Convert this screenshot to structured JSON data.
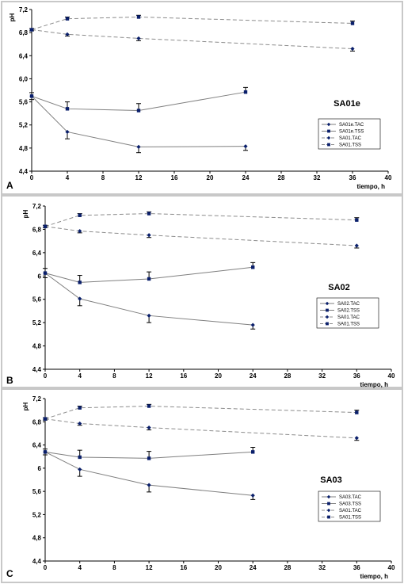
{
  "colors": {
    "solid": "#7f7f7f",
    "dashed": "#8c8c8c",
    "marker": "#0a1f6b",
    "error": "#000000",
    "frame": "#c8c8c8"
  },
  "chart_data": [
    {
      "type": "line",
      "panel_letter": "A",
      "title": "SA01e",
      "xlabel": "tiempo, h",
      "ylabel": "pH",
      "xlim": [
        0,
        40
      ],
      "ylim": [
        4.4,
        7.2
      ],
      "xticks": [
        "0",
        "4",
        "8",
        "12",
        "16",
        "20",
        "24",
        "28",
        "32",
        "36",
        "40"
      ],
      "yticks": [
        "4,4",
        "4,8",
        "5,2",
        "5,6",
        "6,0",
        "6,4",
        "6,8",
        "7,2"
      ],
      "grid": false,
      "legend_position": "right-middle",
      "series": [
        {
          "name": "SA01e.TAC",
          "marker": "diamond",
          "style": "solid",
          "x": [
            0,
            4,
            12,
            24
          ],
          "y": [
            5.7,
            5.08,
            4.82,
            4.83
          ],
          "err": [
            0.06,
            0.12,
            0.1,
            0.07
          ]
        },
        {
          "name": "SA01e.TSS",
          "marker": "square",
          "style": "solid",
          "x": [
            0,
            4,
            12,
            24
          ],
          "y": [
            5.7,
            5.48,
            5.45,
            5.77
          ],
          "err": [
            0.06,
            0.12,
            0.12,
            0.08
          ]
        },
        {
          "name": "SA01.TAC",
          "marker": "diamond",
          "style": "dashed",
          "x": [
            0,
            4,
            12,
            36
          ],
          "y": [
            6.85,
            6.77,
            6.7,
            6.52
          ],
          "err": [
            0.02,
            0.03,
            0.04,
            0.04
          ]
        },
        {
          "name": "SA01.TSS",
          "marker": "square",
          "style": "dashed",
          "x": [
            0,
            4,
            12,
            36
          ],
          "y": [
            6.85,
            7.04,
            7.07,
            6.96
          ],
          "err": [
            0.02,
            0.03,
            0.03,
            0.04
          ]
        }
      ]
    },
    {
      "type": "line",
      "panel_letter": "B",
      "title": "SA02",
      "xlabel": "tiempo, h",
      "ylabel": "pH",
      "xlim": [
        0,
        40
      ],
      "ylim": [
        4.4,
        7.2
      ],
      "xticks": [
        "0",
        "4",
        "8",
        "12",
        "16",
        "20",
        "24",
        "28",
        "32",
        "36",
        "40"
      ],
      "yticks": [
        "4,4",
        "4,8",
        "5,2",
        "5,6",
        "6",
        "6,4",
        "6,8",
        "7,2"
      ],
      "grid": false,
      "legend_position": "right-middle",
      "series": [
        {
          "name": "SA02.TAC",
          "marker": "diamond",
          "style": "solid",
          "x": [
            0,
            4,
            12,
            24
          ],
          "y": [
            6.05,
            5.61,
            5.32,
            5.16
          ],
          "err": [
            0.08,
            0.12,
            0.12,
            0.07
          ]
        },
        {
          "name": "SA02.TSS",
          "marker": "square",
          "style": "solid",
          "x": [
            0,
            4,
            12,
            24
          ],
          "y": [
            6.05,
            5.89,
            5.95,
            6.15
          ],
          "err": [
            0.08,
            0.12,
            0.12,
            0.08
          ]
        },
        {
          "name": "SA01.TAC",
          "marker": "diamond",
          "style": "dashed",
          "x": [
            0,
            4,
            12,
            36
          ],
          "y": [
            6.85,
            6.77,
            6.7,
            6.52
          ],
          "err": [
            0.02,
            0.03,
            0.04,
            0.04
          ]
        },
        {
          "name": "SA01.TSS",
          "marker": "square",
          "style": "dashed",
          "x": [
            0,
            4,
            12,
            36
          ],
          "y": [
            6.85,
            7.04,
            7.07,
            6.96
          ],
          "err": [
            0.02,
            0.03,
            0.03,
            0.04
          ]
        }
      ]
    },
    {
      "type": "line",
      "panel_letter": "C",
      "title": "SA03",
      "xlabel": "tiempo, h",
      "ylabel": "pH",
      "xlim": [
        0,
        40
      ],
      "ylim": [
        4.4,
        7.2
      ],
      "xticks": [
        "0",
        "4",
        "8",
        "12",
        "16",
        "20",
        "24",
        "28",
        "32",
        "36",
        "40"
      ],
      "yticks": [
        "4,4",
        "4,8",
        "5,2",
        "5,6",
        "6",
        "6,4",
        "6,8",
        "7,2"
      ],
      "grid": false,
      "legend_position": "right-middle",
      "series": [
        {
          "name": "SA03.TAC",
          "marker": "diamond",
          "style": "solid",
          "x": [
            0,
            4,
            12,
            24
          ],
          "y": [
            6.28,
            5.98,
            5.71,
            5.53
          ],
          "err": [
            0.05,
            0.12,
            0.12,
            0.07
          ]
        },
        {
          "name": "SA03.TSS",
          "marker": "square",
          "style": "solid",
          "x": [
            0,
            4,
            12,
            24
          ],
          "y": [
            6.28,
            6.19,
            6.17,
            6.28
          ],
          "err": [
            0.05,
            0.12,
            0.12,
            0.08
          ]
        },
        {
          "name": "SA01.TAC",
          "marker": "diamond",
          "style": "dashed",
          "x": [
            0,
            4,
            12,
            36
          ],
          "y": [
            6.85,
            6.77,
            6.7,
            6.52
          ],
          "err": [
            0.02,
            0.03,
            0.04,
            0.04
          ]
        },
        {
          "name": "SA01.TSS",
          "marker": "square",
          "style": "dashed",
          "x": [
            0,
            4,
            12,
            36
          ],
          "y": [
            6.85,
            7.04,
            7.07,
            6.96
          ],
          "err": [
            0.02,
            0.03,
            0.03,
            0.04
          ]
        }
      ]
    }
  ]
}
